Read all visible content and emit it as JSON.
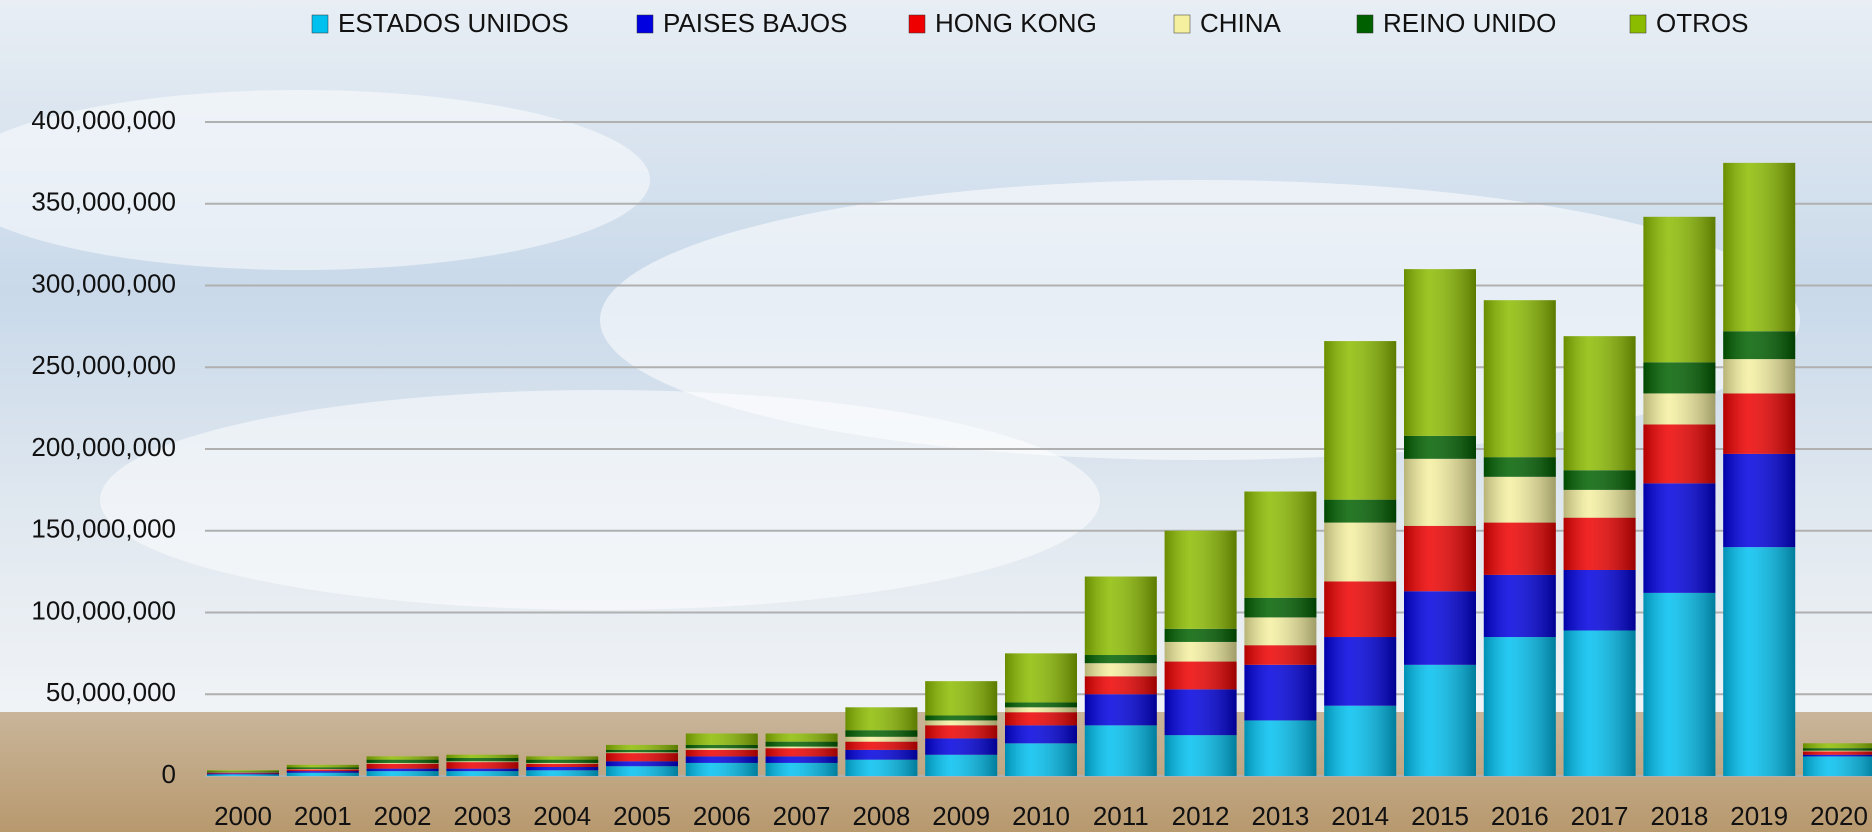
{
  "chart_data": {
    "type": "stacked-bar",
    "categories": [
      "2000",
      "2001",
      "2002",
      "2003",
      "2004",
      "2005",
      "2006",
      "2007",
      "2008",
      "2009",
      "2010",
      "2011",
      "2012",
      "2013",
      "2014",
      "2015",
      "2016",
      "2017",
      "2018",
      "2019",
      "2020"
    ],
    "series": [
      {
        "name": "ESTADOS UNIDOS",
        "color": "#00c0f0",
        "values": [
          1000000,
          2000000,
          3000000,
          3000000,
          3500000,
          6000000,
          8000000,
          8000000,
          10000000,
          13000000,
          20000000,
          31000000,
          25000000,
          34000000,
          43000000,
          68000000,
          85000000,
          89000000,
          112000000,
          140000000,
          12000000
        ]
      },
      {
        "name": "PAISES BAJOS",
        "color": "#0000e0",
        "values": [
          500000,
          1000000,
          1500000,
          1500000,
          2000000,
          3000000,
          4000000,
          4000000,
          6000000,
          10000000,
          11000000,
          19000000,
          28000000,
          34000000,
          42000000,
          45000000,
          38000000,
          37000000,
          67000000,
          57000000,
          1000000
        ]
      },
      {
        "name": "HONG KONG",
        "color": "#ee0000",
        "values": [
          500000,
          1000000,
          3000000,
          4000000,
          2000000,
          5000000,
          4000000,
          5000000,
          5000000,
          8000000,
          8000000,
          11000000,
          17000000,
          12000000,
          34000000,
          40000000,
          32000000,
          32000000,
          36000000,
          37000000,
          2000000
        ]
      },
      {
        "name": "CHINA",
        "color": "#f5f0a0",
        "values": [
          200000,
          300000,
          500000,
          500000,
          500000,
          500000,
          1000000,
          1000000,
          3000000,
          3000000,
          3000000,
          8000000,
          12000000,
          17000000,
          36000000,
          41000000,
          28000000,
          17000000,
          19000000,
          21000000,
          500000
        ]
      },
      {
        "name": "REINO UNIDO",
        "color": "#006000",
        "values": [
          500000,
          1000000,
          2000000,
          2000000,
          2000000,
          1500000,
          2000000,
          3000000,
          4000000,
          3000000,
          3000000,
          5000000,
          8000000,
          12000000,
          14000000,
          14000000,
          12000000,
          12000000,
          19000000,
          17000000,
          1500000
        ]
      },
      {
        "name": "OTROS",
        "color": "#8cbc00",
        "values": [
          800000,
          1500000,
          2000000,
          2000000,
          2000000,
          3000000,
          7000000,
          5000000,
          14000000,
          21000000,
          30000000,
          48000000,
          60000000,
          65000000,
          97000000,
          102000000,
          96000000,
          82000000,
          89000000,
          103000000,
          3000000
        ]
      }
    ],
    "ylim": [
      0,
      400000000
    ],
    "yticks": [
      0,
      {
        "value": 50000000,
        "label": "50,000,000"
      },
      {
        "value": 100000000,
        "label": "100,000,000"
      },
      {
        "value": 150000000,
        "label": "150,000,000"
      },
      {
        "value": 200000000,
        "label": "200,000,000"
      },
      {
        "value": 250000000,
        "label": "250,000,000"
      },
      {
        "value": 300000000,
        "label": "300,000,000"
      },
      {
        "value": 350000000,
        "label": "350,000,000"
      },
      {
        "value": 400000000,
        "label": "400,000,000"
      }
    ],
    "grid": true,
    "legend": "top"
  }
}
